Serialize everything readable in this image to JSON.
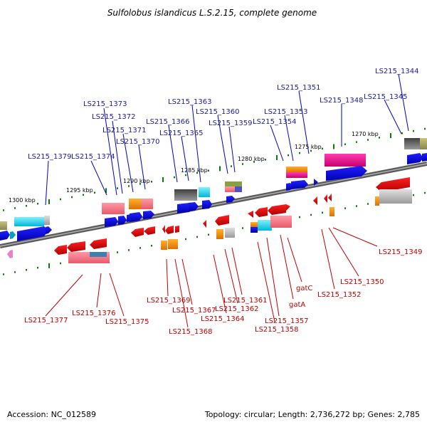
{
  "title": "Sulfolobus islandicus L.S.2.15, complete genome",
  "accession": "Accession: NC_012589",
  "summary": "Topology: circular; Length: 2,736,272 bp; Genes: 2,785",
  "scale_labels": [
    "1300 kbp",
    "1295 kbp",
    "1290 kbp",
    "1285 kbp",
    "1280 kbp",
    "1275 kbp",
    "1270 kbp"
  ],
  "top_labels": [
    "LS215_1344",
    "LS215_1345",
    "LS215_1348",
    "LS215_1351",
    "LS215_1353",
    "LS215_1354",
    "LS215_1359",
    "LS215_1360",
    "LS215_1363",
    "LS215_1365",
    "LS215_1366",
    "LS215_1370",
    "LS215_1371",
    "LS215_1372",
    "LS215_1373",
    "LS215_1374",
    "LS215_1379"
  ],
  "bottom_labels": [
    "LS215_1349",
    "LS215_1350",
    "LS215_1352",
    "gatC",
    "gatA",
    "LS215_1357",
    "LS215_1358",
    "LS215_1361",
    "LS215_1362",
    "LS215_1364",
    "LS215_1367",
    "LS215_1368",
    "LS215_1369",
    "LS215_1375",
    "LS215_1376",
    "LS215_1377"
  ],
  "colors": {
    "forward_cds": "#0000e0",
    "reverse_cds": "#e00000",
    "label_forward": "#1a1aa0",
    "label_reverse": "#c00000",
    "tick": "#0a7a0a",
    "backbone": "#7f7f7f"
  }
}
